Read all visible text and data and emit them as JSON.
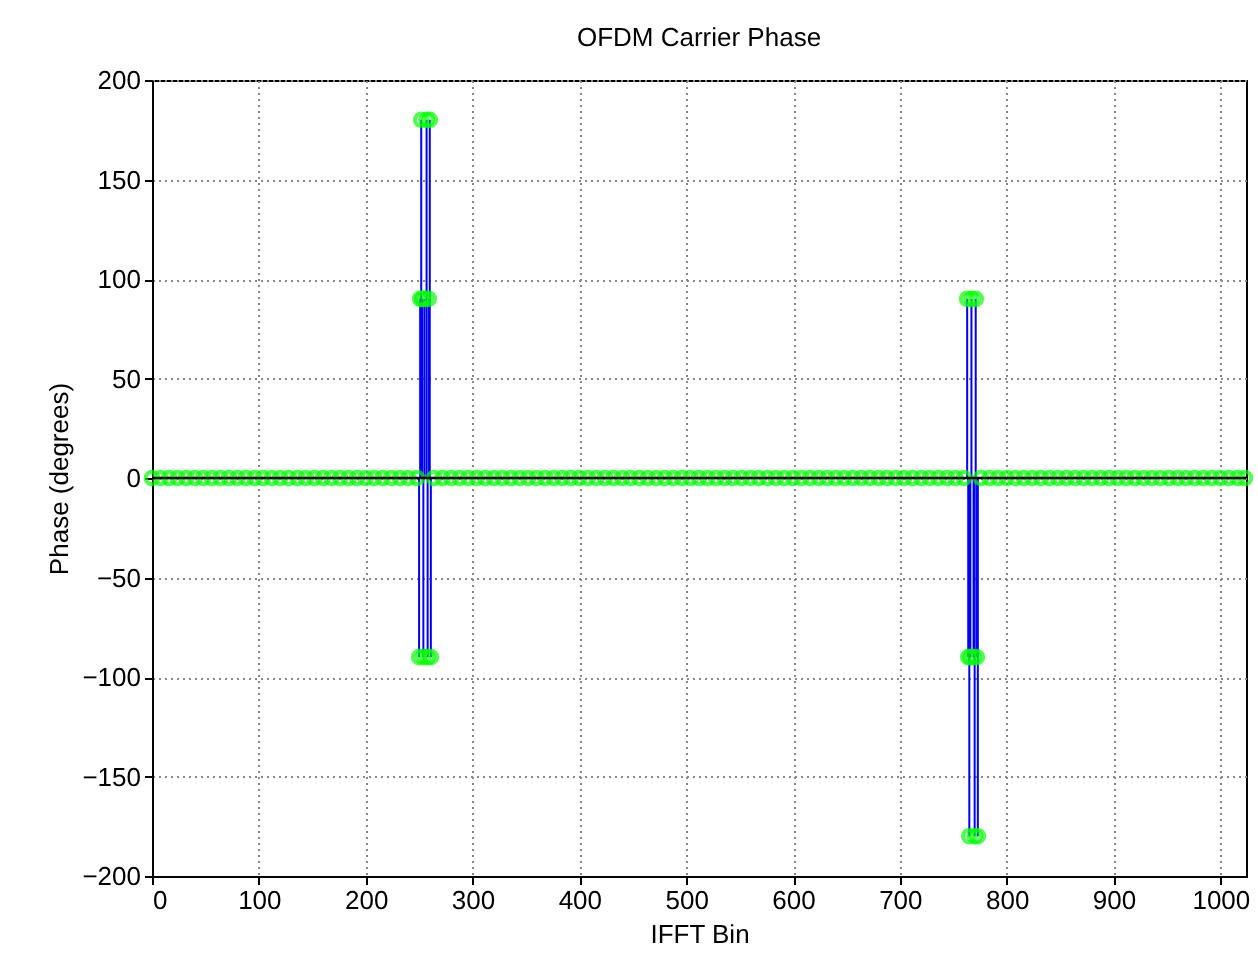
{
  "chart_data": {
    "type": "lollipop",
    "title": "OFDM Carrier Phase",
    "xlabel": "IFFT Bin",
    "ylabel": "Phase (degrees)",
    "xlim": [
      0,
      1024
    ],
    "xticks": [
      0,
      100,
      200,
      300,
      400,
      500,
      600,
      700,
      800,
      900,
      1000
    ],
    "ylim": [
      -200,
      200
    ],
    "yticks": [
      -200,
      -150,
      -100,
      -50,
      0,
      50,
      100,
      150,
      200
    ],
    "grid": true,
    "marker": "circle",
    "ref_lines": [
      {
        "axis": "y",
        "value": 0,
        "color": "#000000"
      }
    ],
    "series": [
      {
        "color": "#00ff00",
        "x": [
          0,
          8,
          16,
          24,
          32,
          40,
          48,
          56,
          64,
          72,
          80,
          88,
          96,
          104,
          112,
          120,
          128,
          136,
          144,
          152,
          160,
          168,
          176,
          184,
          192,
          200,
          208,
          216,
          224,
          232,
          240,
          248,
          250,
          251,
          252,
          253,
          254,
          255,
          257,
          258,
          259,
          260,
          261,
          264,
          272,
          280,
          288,
          296,
          304,
          312,
          320,
          328,
          336,
          344,
          352,
          360,
          368,
          376,
          384,
          392,
          400,
          408,
          416,
          424,
          432,
          440,
          448,
          456,
          464,
          472,
          480,
          488,
          496,
          504,
          512,
          520,
          528,
          536,
          544,
          552,
          560,
          568,
          576,
          584,
          592,
          600,
          608,
          616,
          624,
          632,
          640,
          648,
          656,
          664,
          672,
          680,
          688,
          696,
          704,
          712,
          720,
          728,
          736,
          744,
          752,
          760,
          763,
          764,
          765,
          766,
          767,
          769,
          770,
          771,
          772,
          773,
          776,
          784,
          792,
          800,
          808,
          816,
          824,
          832,
          840,
          848,
          856,
          864,
          872,
          880,
          888,
          896,
          904,
          912,
          920,
          928,
          936,
          944,
          952,
          960,
          968,
          976,
          984,
          992,
          1000,
          1008,
          1016,
          1023
        ],
        "values": [
          0,
          0,
          0,
          0,
          0,
          0,
          0,
          0,
          0,
          0,
          0,
          0,
          0,
          0,
          0,
          0,
          0,
          0,
          0,
          0,
          0,
          0,
          0,
          0,
          0,
          0,
          0,
          0,
          0,
          0,
          0,
          0,
          -90,
          90,
          180,
          90,
          -90,
          90,
          180,
          -90,
          90,
          180,
          -90,
          0,
          0,
          0,
          0,
          0,
          0,
          0,
          0,
          0,
          0,
          0,
          0,
          0,
          0,
          0,
          0,
          0,
          0,
          0,
          0,
          0,
          0,
          0,
          0,
          0,
          0,
          0,
          0,
          0,
          0,
          0,
          0,
          0,
          0,
          0,
          0,
          0,
          0,
          0,
          0,
          0,
          0,
          0,
          0,
          0,
          0,
          0,
          0,
          0,
          0,
          0,
          0,
          0,
          0,
          0,
          0,
          0,
          0,
          0,
          0,
          0,
          0,
          0,
          90,
          -90,
          -180,
          -90,
          90,
          -90,
          -180,
          90,
          -90,
          -180,
          0,
          0,
          0,
          0,
          0,
          0,
          0,
          0,
          0,
          0,
          0,
          0,
          0,
          0,
          0,
          0,
          0,
          0,
          0,
          0,
          0,
          0,
          0,
          0,
          0,
          0,
          0,
          0,
          0,
          0,
          0,
          0
        ]
      }
    ]
  }
}
